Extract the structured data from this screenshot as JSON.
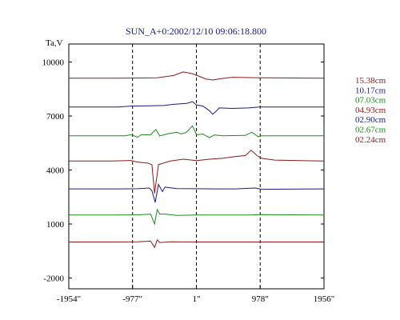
{
  "chart_data": {
    "type": "line",
    "title": "SUN_A+0:2002/12/10 09:06:18.800",
    "ylabel": "Ta,V",
    "xlabel": "",
    "xlim": [
      -1954,
      1956
    ],
    "ylim": [
      -2600,
      11000
    ],
    "grid": "vertical-dashed",
    "vlines_x": [
      -977,
      1,
      978
    ],
    "y_ticks": [
      10000,
      7000,
      4000,
      1000,
      -2000
    ],
    "y_tick_labels": [
      "10000",
      "7000",
      "4000",
      "1000",
      "-2000"
    ],
    "x_ticks": [
      -1954,
      -977,
      1,
      978,
      1956
    ],
    "x_tick_labels": [
      "-1954\"",
      "-977\"",
      "1\"",
      "978\"",
      "1956\""
    ],
    "legend_position": "right",
    "series": [
      {
        "name": "15.38cm",
        "color": "#8b1a1a",
        "points": [
          [
            -1954,
            9100
          ],
          [
            -1200,
            9100
          ],
          [
            -600,
            9120
          ],
          [
            -350,
            9250
          ],
          [
            -200,
            9450
          ],
          [
            -60,
            9350
          ],
          [
            60,
            9180
          ],
          [
            150,
            9050
          ],
          [
            250,
            9000
          ],
          [
            380,
            9080
          ],
          [
            550,
            9150
          ],
          [
            900,
            9130
          ],
          [
            1956,
            9100
          ]
        ]
      },
      {
        "name": "10.17cm",
        "color": "#1a1a80",
        "points": [
          [
            -1954,
            7500
          ],
          [
            -1200,
            7500
          ],
          [
            -1000,
            7550
          ],
          [
            -800,
            7560
          ],
          [
            -500,
            7580
          ],
          [
            -350,
            7650
          ],
          [
            -150,
            7700
          ],
          [
            -60,
            7800
          ],
          [
            0,
            7620
          ],
          [
            100,
            7550
          ],
          [
            200,
            7300
          ],
          [
            250,
            7100
          ],
          [
            300,
            7250
          ],
          [
            350,
            7450
          ],
          [
            550,
            7420
          ],
          [
            800,
            7450
          ],
          [
            960,
            7500
          ],
          [
            1956,
            7500
          ]
        ]
      },
      {
        "name": "07.03cm",
        "color": "#1a8b1a",
        "points": [
          [
            -1954,
            5900
          ],
          [
            -1100,
            5900
          ],
          [
            -1000,
            5960
          ],
          [
            -900,
            5820
          ],
          [
            -850,
            5950
          ],
          [
            -700,
            5960
          ],
          [
            -620,
            6250
          ],
          [
            -560,
            5900
          ],
          [
            -450,
            6000
          ],
          [
            -300,
            6100
          ],
          [
            -230,
            6000
          ],
          [
            -150,
            6100
          ],
          [
            -60,
            6450
          ],
          [
            -20,
            6150
          ],
          [
            0,
            5950
          ],
          [
            100,
            6000
          ],
          [
            200,
            5800
          ],
          [
            280,
            5950
          ],
          [
            400,
            5900
          ],
          [
            750,
            5920
          ],
          [
            850,
            6100
          ],
          [
            950,
            5850
          ],
          [
            1000,
            5900
          ],
          [
            1956,
            5900
          ]
        ]
      },
      {
        "name": "04.93cm",
        "color": "#8b1a1a",
        "points": [
          [
            -1954,
            4500
          ],
          [
            -1300,
            4500
          ],
          [
            -1000,
            4530
          ],
          [
            -920,
            4450
          ],
          [
            -740,
            4380
          ],
          [
            -680,
            4300
          ],
          [
            -640,
            2700
          ],
          [
            -580,
            4300
          ],
          [
            -400,
            4500
          ],
          [
            -200,
            4600
          ],
          [
            0,
            4520
          ],
          [
            200,
            4600
          ],
          [
            400,
            4650
          ],
          [
            600,
            4750
          ],
          [
            750,
            4800
          ],
          [
            840,
            5100
          ],
          [
            930,
            4800
          ],
          [
            1000,
            4650
          ],
          [
            1200,
            4550
          ],
          [
            1956,
            4500
          ]
        ]
      },
      {
        "name": "02.90cm",
        "color": "#1a1a80",
        "points": [
          [
            -1954,
            2950
          ],
          [
            -1200,
            2950
          ],
          [
            -900,
            2960
          ],
          [
            -720,
            3000
          ],
          [
            -680,
            2850
          ],
          [
            -630,
            2200
          ],
          [
            -580,
            3200
          ],
          [
            -520,
            2800
          ],
          [
            -480,
            3050
          ],
          [
            -300,
            2970
          ],
          [
            0,
            2960
          ],
          [
            300,
            2950
          ],
          [
            600,
            2950
          ],
          [
            900,
            3000
          ],
          [
            1000,
            2930
          ],
          [
            1956,
            2950
          ]
        ]
      },
      {
        "name": "02.67cm",
        "color": "#1a8b1a",
        "points": [
          [
            -1954,
            1500
          ],
          [
            -1200,
            1500
          ],
          [
            -900,
            1510
          ],
          [
            -700,
            1550
          ],
          [
            -640,
            1000
          ],
          [
            -600,
            1800
          ],
          [
            -560,
            1550
          ],
          [
            -480,
            1550
          ],
          [
            -300,
            1480
          ],
          [
            0,
            1500
          ],
          [
            400,
            1500
          ],
          [
            800,
            1500
          ],
          [
            1000,
            1520
          ],
          [
            1956,
            1500
          ]
        ]
      },
      {
        "name": "02.24cm",
        "color": "#8b1a1a",
        "points": [
          [
            -1954,
            0
          ],
          [
            -1200,
            0
          ],
          [
            -900,
            10
          ],
          [
            -700,
            50
          ],
          [
            -640,
            -300
          ],
          [
            -600,
            120
          ],
          [
            -560,
            -30
          ],
          [
            -400,
            10
          ],
          [
            0,
            0
          ],
          [
            400,
            0
          ],
          [
            1956,
            0
          ]
        ]
      }
    ]
  }
}
